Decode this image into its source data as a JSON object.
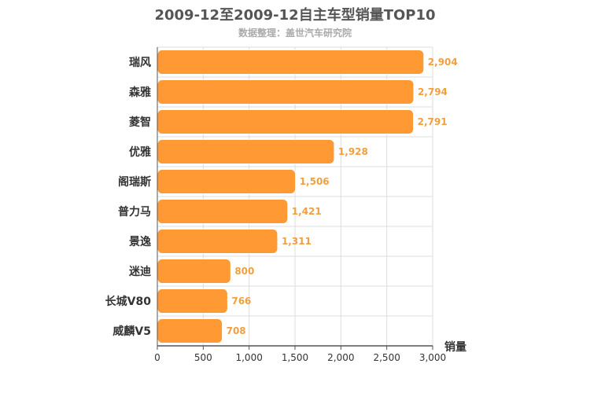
{
  "chart_data": {
    "type": "bar",
    "orientation": "horizontal",
    "title": "2009-12至2009-12自主车型销量TOP10",
    "subtitle": "数据整理：盖世汽车研究院",
    "xlabel": "销量",
    "ylabel": "",
    "categories": [
      "瑞风",
      "森雅",
      "菱智",
      "优雅",
      "阁瑞斯",
      "普力马",
      "景逸",
      "迷迪",
      "长城V80",
      "威麟V5"
    ],
    "values": [
      2904,
      2794,
      2791,
      1928,
      1506,
      1421,
      1311,
      800,
      766,
      708
    ],
    "value_labels": [
      "2,904",
      "2,794",
      "2,791",
      "1,928",
      "1,506",
      "1,421",
      "1,311",
      "800",
      "766",
      "708"
    ],
    "xlim": [
      0,
      3000
    ],
    "xticks": [
      0,
      500,
      1000,
      1500,
      2000,
      2500,
      3000
    ],
    "xtick_labels": [
      "0",
      "500",
      "1,000",
      "1,500",
      "2,000",
      "2,500",
      "3,000"
    ],
    "grid": true,
    "legend": "none",
    "colors": {
      "bar": "#ff9933",
      "value_label": "#f0a040",
      "grid": "#dddddd",
      "axis": "#555555",
      "title": "#555555",
      "subtitle": "#aaaaaa",
      "category_label": "#333333"
    }
  }
}
